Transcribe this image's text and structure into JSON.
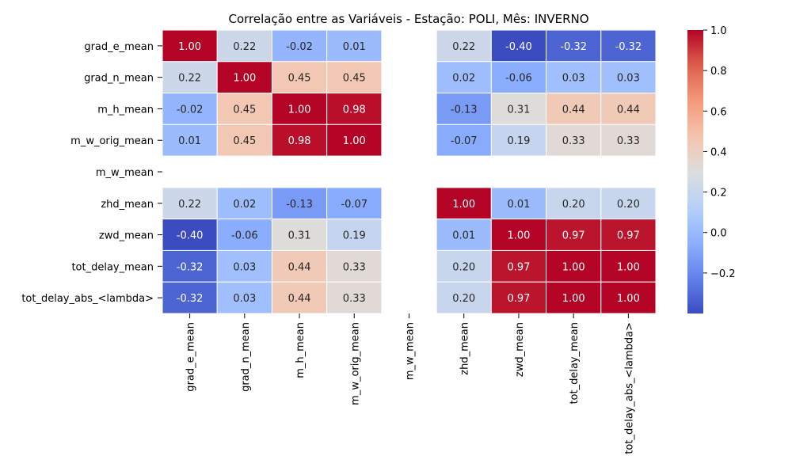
{
  "chart_data": {
    "type": "heatmap",
    "title": "Correlação entre as Variáveis - Estação: POLI, Mês: INVERNO",
    "rows": [
      "grad_e_mean",
      "grad_n_mean",
      "m_h_mean",
      "m_w_orig_mean",
      "m_w_mean",
      "zhd_mean",
      "zwd_mean",
      "tot_delay_mean",
      "tot_delay_abs_<lambda>"
    ],
    "columns": [
      "grad_e_mean",
      "grad_n_mean",
      "m_h_mean",
      "m_w_orig_mean",
      "m_w_mean",
      "zhd_mean",
      "zwd_mean",
      "tot_delay_mean",
      "tot_delay_abs_<lambda>"
    ],
    "values": [
      [
        1.0,
        0.22,
        -0.02,
        0.01,
        null,
        0.22,
        -0.4,
        -0.32,
        -0.32
      ],
      [
        0.22,
        1.0,
        0.45,
        0.45,
        null,
        0.02,
        -0.06,
        0.03,
        0.03
      ],
      [
        -0.02,
        0.45,
        1.0,
        0.98,
        null,
        -0.13,
        0.31,
        0.44,
        0.44
      ],
      [
        0.01,
        0.45,
        0.98,
        1.0,
        null,
        -0.07,
        0.19,
        0.33,
        0.33
      ],
      [
        null,
        null,
        null,
        null,
        null,
        null,
        null,
        null,
        null
      ],
      [
        0.22,
        0.02,
        -0.13,
        -0.07,
        null,
        1.0,
        0.01,
        0.2,
        0.2
      ],
      [
        -0.4,
        -0.06,
        0.31,
        0.19,
        null,
        0.01,
        1.0,
        0.97,
        0.97
      ],
      [
        -0.32,
        0.03,
        0.44,
        0.33,
        null,
        0.2,
        0.97,
        1.0,
        1.0
      ],
      [
        -0.32,
        0.03,
        0.44,
        0.33,
        null,
        0.2,
        0.97,
        1.0,
        1.0
      ]
    ],
    "colormap": "coolwarm",
    "vmin": -0.4,
    "vmax": 1.0,
    "colorbar_ticks": [
      -0.2,
      0.0,
      0.2,
      0.4,
      0.6,
      0.8,
      1.0
    ],
    "colorbar_tick_labels": [
      "−0.2",
      "0.0",
      "0.2",
      "0.4",
      "0.6",
      "0.8",
      "1.0"
    ],
    "colors": {
      "low": "#3b4cc0",
      "mid": "#dddddd",
      "high": "#b40426",
      "grid": "#ffffff"
    }
  }
}
